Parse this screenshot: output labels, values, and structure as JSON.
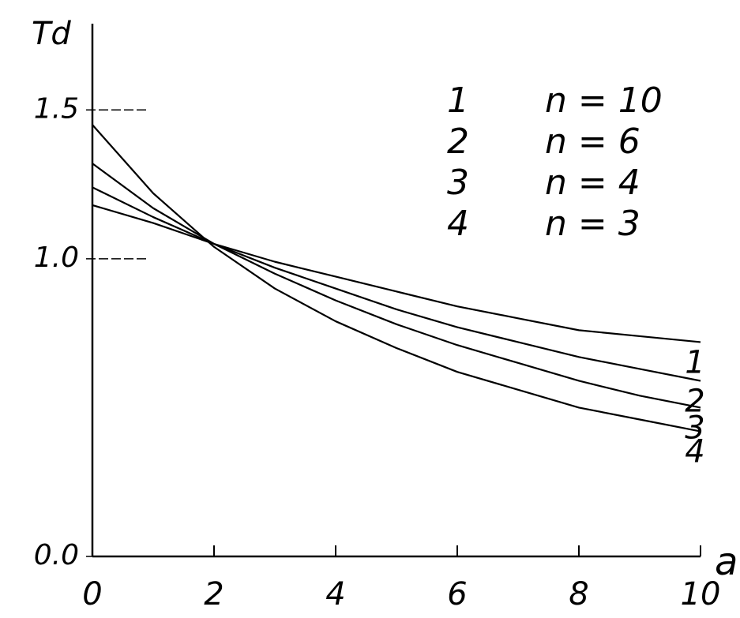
{
  "chart_data": {
    "type": "line",
    "x_label": "a",
    "y_label": "Td",
    "x": [
      0,
      1,
      2,
      3,
      4,
      5,
      6,
      7,
      8,
      9,
      10
    ],
    "series": [
      {
        "label": "1",
        "name": "n = 10",
        "color": "#000000",
        "values": [
          1.18,
          1.12,
          1.05,
          0.99,
          0.94,
          0.89,
          0.84,
          0.8,
          0.76,
          0.74,
          0.72
        ]
      },
      {
        "label": "2",
        "name": "n = 6",
        "color": "#000000",
        "values": [
          1.24,
          1.14,
          1.05,
          0.97,
          0.9,
          0.83,
          0.77,
          0.72,
          0.67,
          0.63,
          0.59
        ]
      },
      {
        "label": "3",
        "name": "n = 4",
        "color": "#000000",
        "values": [
          1.32,
          1.17,
          1.05,
          0.95,
          0.86,
          0.78,
          0.71,
          0.65,
          0.59,
          0.54,
          0.5
        ]
      },
      {
        "label": "4",
        "name": "n = 3",
        "color": "#000000",
        "values": [
          1.45,
          1.22,
          1.04,
          0.9,
          0.79,
          0.7,
          0.62,
          0.56,
          0.5,
          0.46,
          0.42
        ]
      }
    ],
    "xlim": [
      0,
      10
    ],
    "xticks": [
      0,
      2,
      4,
      6,
      8,
      10
    ],
    "ylim": [
      0,
      1.75
    ],
    "yticks": [
      {
        "value": 0,
        "label": "0.0"
      },
      {
        "value": 1,
        "label": "1.0"
      },
      1.5
    ],
    "grid": false
  }
}
